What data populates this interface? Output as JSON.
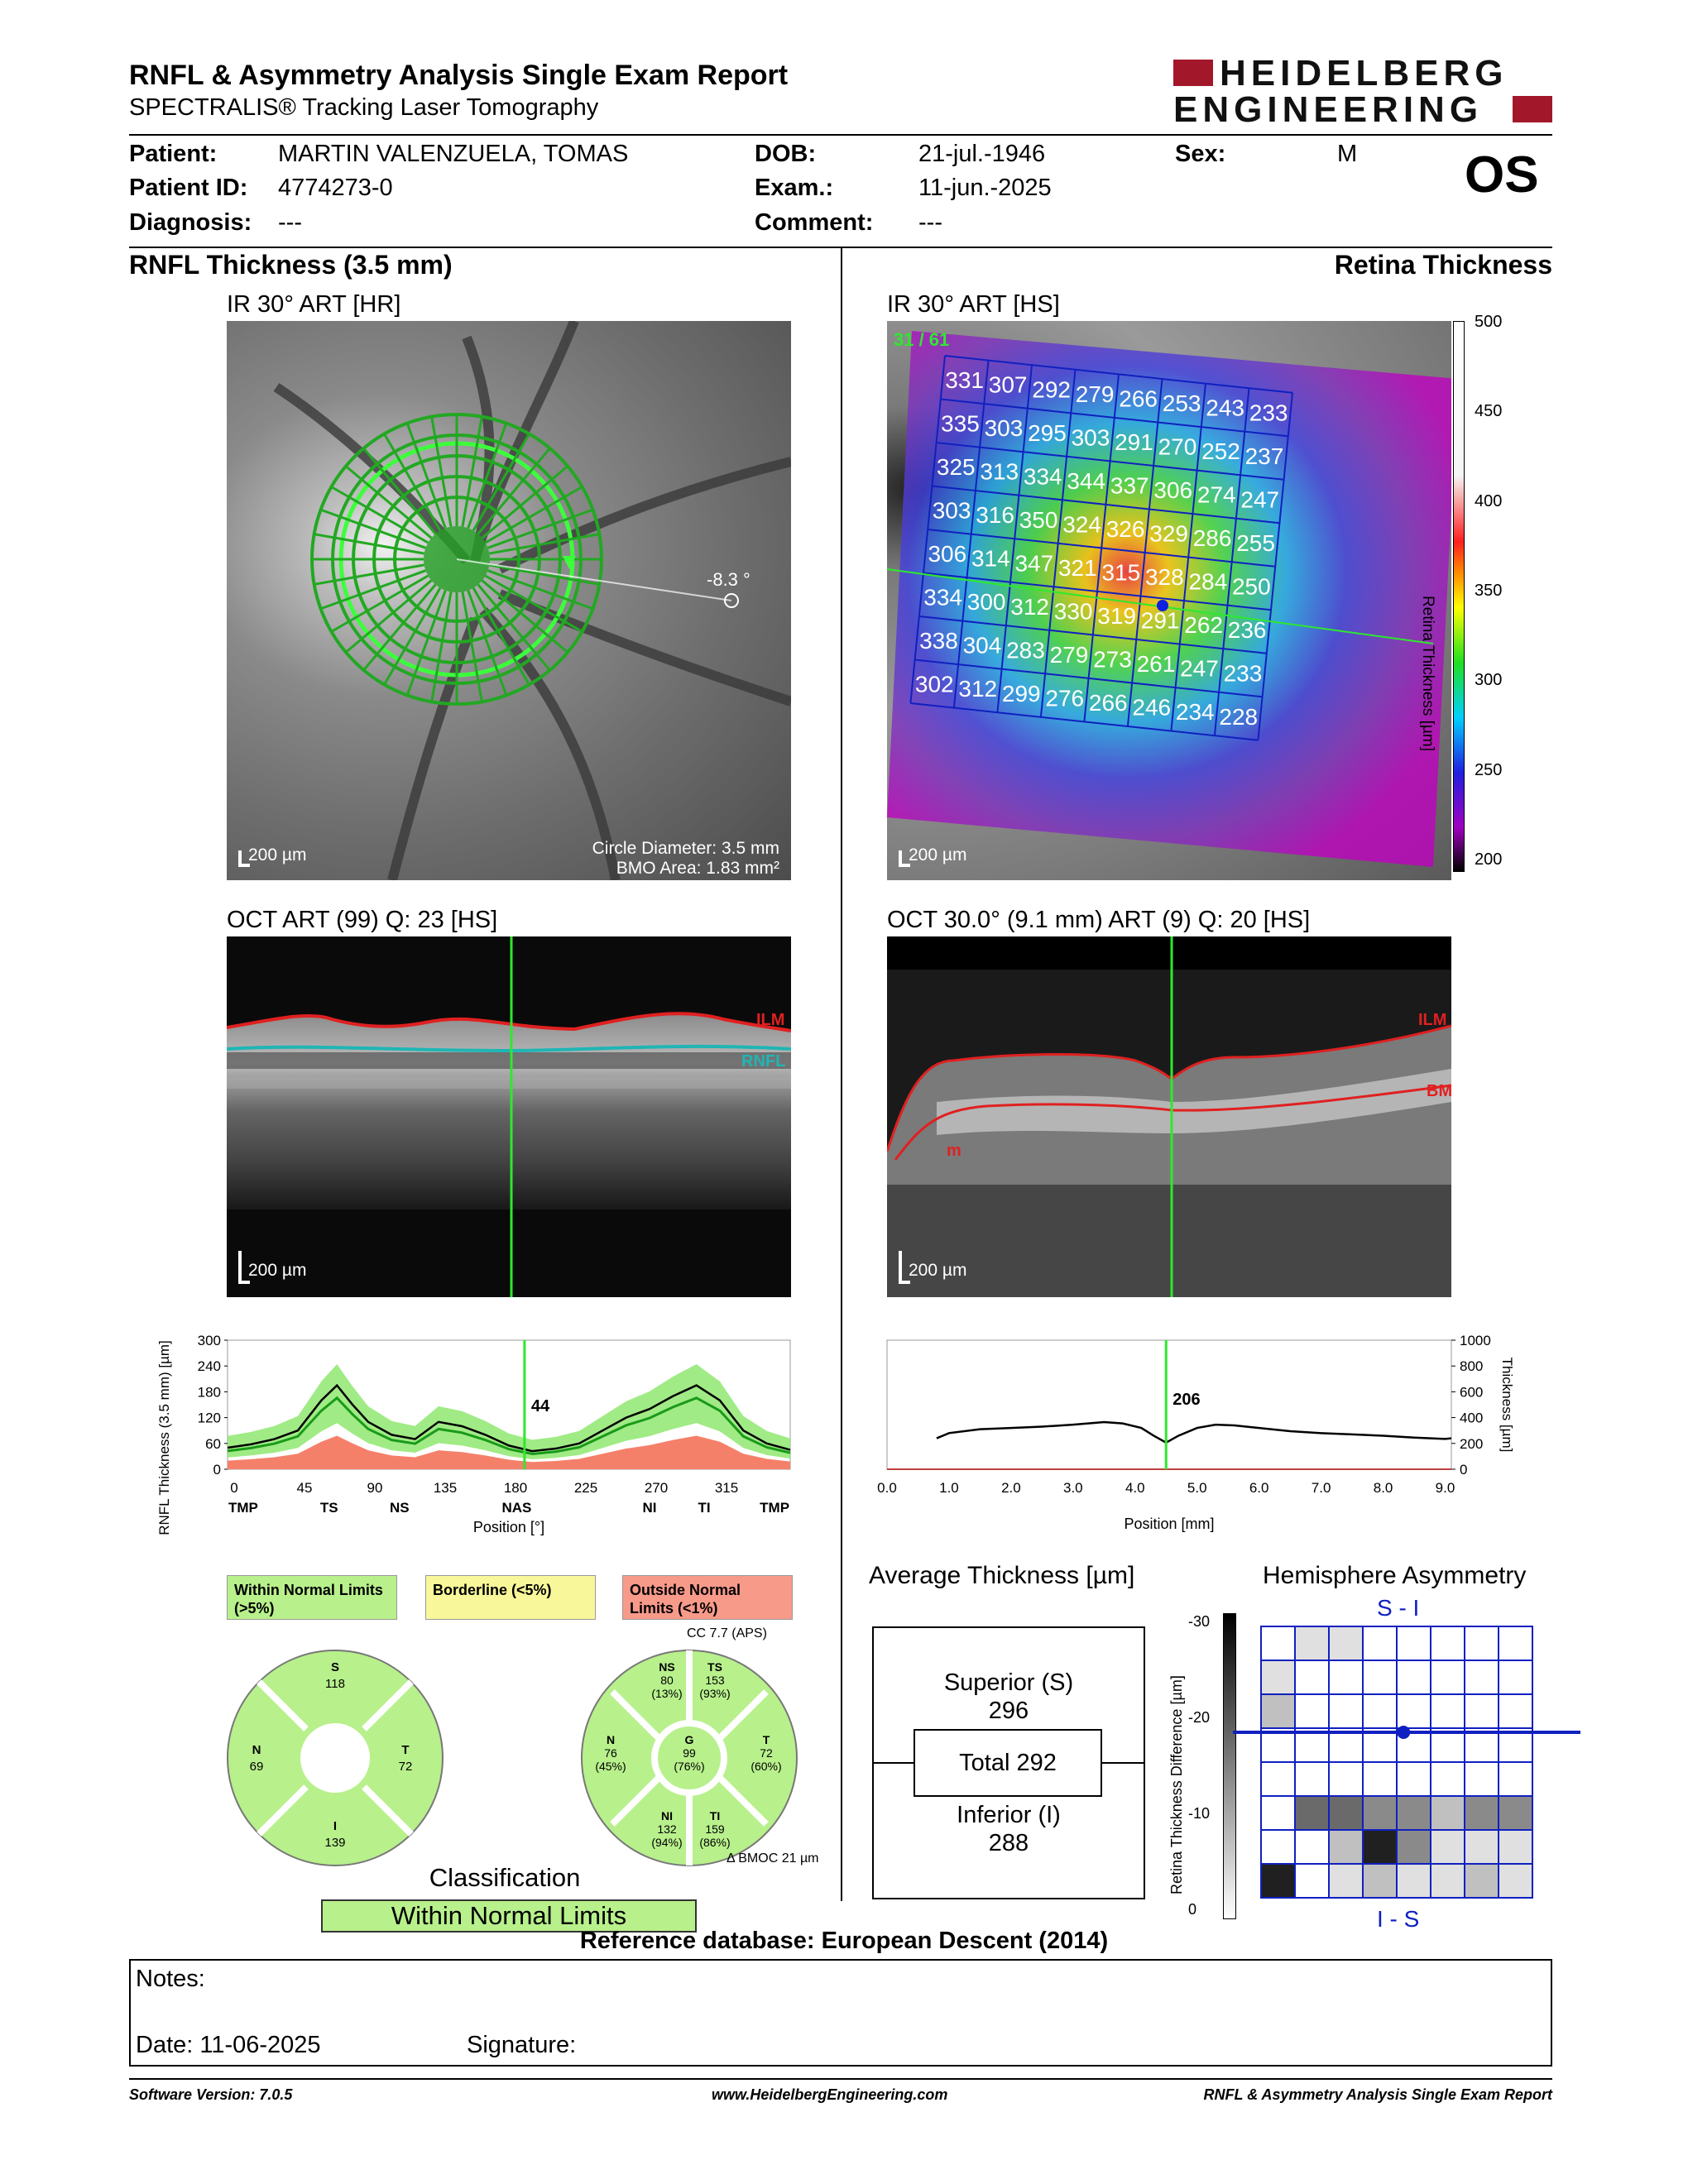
{
  "header": {
    "title": "RNFL & Asymmetry Analysis Single Exam Report",
    "subtitle": "SPECTRALIS® Tracking Laser Tomography",
    "logo_line1": "HEIDELBERG",
    "logo_line2": "ENGINEERING",
    "eye": "OS"
  },
  "patient": {
    "patient_label": "Patient:",
    "patient_value": "MARTIN VALENZUELA, TOMAS",
    "id_label": "Patient ID:",
    "id_value": "4774273-0",
    "diag_label": "Diagnosis:",
    "diag_value": "---",
    "dob_label": "DOB:",
    "dob_value": "21-jul.-1946",
    "exam_label": "Exam.:",
    "exam_value": "11-jun.-2025",
    "comment_label": "Comment:",
    "comment_value": "---",
    "sex_label": "Sex:",
    "sex_value": "M"
  },
  "left": {
    "section_title": "RNFL Thickness (3.5 mm)",
    "ir_label": "IR 30° ART [HR]",
    "ir_angle": "-8.3 °",
    "ir_scale": "200 µm",
    "circle_diameter": "Circle Diameter: 3.5 mm",
    "bmo_area": "BMO Area: 1.83 mm²",
    "oct_label": "OCT ART (99) Q: 23 [HS]",
    "oct_scale": "200 µm",
    "oct_ilm": "ILM",
    "oct_rnfl": "RNFL"
  },
  "right": {
    "section_title": "Retina Thickness",
    "ir_label": "IR 30° ART [HS]",
    "ir_scale": "200 µm",
    "frame": "31 / 61",
    "grid": [
      [
        331,
        307,
        292,
        279,
        266,
        253,
        243,
        233
      ],
      [
        335,
        303,
        295,
        303,
        291,
        270,
        252,
        237
      ],
      [
        325,
        313,
        334,
        344,
        337,
        306,
        274,
        247
      ],
      [
        303,
        316,
        350,
        324,
        326,
        329,
        286,
        255
      ],
      [
        306,
        314,
        347,
        321,
        315,
        328,
        284,
        250
      ],
      [
        334,
        300,
        312,
        330,
        319,
        291,
        262,
        236
      ],
      [
        338,
        304,
        283,
        279,
        273,
        261,
        247,
        233
      ],
      [
        302,
        312,
        299,
        276,
        266,
        246,
        234,
        228
      ]
    ],
    "colorbar_title": "Retina Thickness [µm]",
    "colorbar_ticks": [
      "500",
      "450",
      "400",
      "350",
      "300",
      "250",
      "200"
    ],
    "oct_label": "OCT 30.0° (9.1 mm) ART (9) Q: 20 [HS]",
    "oct_scale": "200 µm",
    "oct_ilm": "ILM",
    "oct_bm": "BM",
    "oct_m": "m"
  },
  "chart_data": [
    {
      "type": "line",
      "ylabel": "RNFL Thickness (3.5 mm) [µm]",
      "xlabel": "Position [°]",
      "ylim": [
        0,
        300
      ],
      "xlim": [
        0,
        360
      ],
      "yticks": [
        "300",
        "240",
        "180",
        "120",
        "60",
        "0"
      ],
      "xticks": [
        "0",
        "45",
        "90",
        "135",
        "180",
        "225",
        "270",
        "315"
      ],
      "sector_labels": [
        "TMP",
        "TS",
        "NS",
        "NAS",
        "NI",
        "TI",
        "TMP"
      ],
      "cursor_x": 190,
      "cursor_value": "44",
      "x": [
        0,
        15,
        30,
        45,
        60,
        70,
        80,
        90,
        105,
        120,
        135,
        150,
        165,
        180,
        195,
        210,
        225,
        240,
        255,
        270,
        285,
        300,
        315,
        330,
        345,
        360
      ],
      "values": [
        50,
        58,
        70,
        90,
        160,
        195,
        150,
        110,
        80,
        70,
        110,
        100,
        80,
        55,
        42,
        48,
        60,
        90,
        120,
        140,
        170,
        195,
        160,
        90,
        60,
        45
      ]
    },
    {
      "type": "line",
      "ylabel": "Thickness [µm]",
      "xlabel": "Position [mm]",
      "ylim": [
        0,
        1000
      ],
      "xlim": [
        0,
        9.1
      ],
      "yticks": [
        "1000",
        "800",
        "600",
        "400",
        "200",
        "0"
      ],
      "xticks": [
        "0.0",
        "1.0",
        "2.0",
        "3.0",
        "4.0",
        "5.0",
        "6.0",
        "7.0",
        "8.0",
        "9.0"
      ],
      "cursor_x": 4.5,
      "cursor_value": "206",
      "x": [
        0.8,
        1.0,
        1.5,
        2.0,
        2.5,
        3.0,
        3.5,
        3.8,
        4.1,
        4.3,
        4.5,
        4.7,
        5.0,
        5.3,
        5.6,
        6.0,
        6.5,
        7.0,
        7.5,
        8.0,
        8.5,
        9.0,
        9.1
      ],
      "values": [
        240,
        280,
        310,
        320,
        330,
        345,
        365,
        355,
        320,
        260,
        206,
        260,
        320,
        345,
        340,
        320,
        295,
        280,
        270,
        260,
        245,
        235,
        240
      ]
    }
  ],
  "legend": {
    "within": "Within Normal Limits (>5%)",
    "borderline": "Borderline (<5%)",
    "outside": "Outside Normal Limits (<1%)"
  },
  "sectors_quadrant": {
    "S_label": "S",
    "S_value": "118",
    "N_label": "N",
    "N_value": "69",
    "T_label": "T",
    "T_value": "72",
    "I_label": "I",
    "I_value": "139"
  },
  "sectors_six": {
    "cc": "CC 7.7 (APS)",
    "NS_label": "NS",
    "NS_value": "80",
    "NS_pct": "(13%)",
    "TS_label": "TS",
    "TS_value": "153",
    "TS_pct": "(93%)",
    "N_label": "N",
    "N_value": "76",
    "N_pct": "(45%)",
    "G_label": "G",
    "G_value": "99",
    "G_pct": "(76%)",
    "T_label": "T",
    "T_value": "72",
    "T_pct": "(60%)",
    "NI_label": "NI",
    "NI_value": "132",
    "NI_pct": "(94%)",
    "TI_label": "TI",
    "TI_value": "159",
    "TI_pct": "(86%)",
    "bmoc": "Δ BMOC 21 µm"
  },
  "classification": {
    "title": "Classification",
    "value": "Within Normal Limits"
  },
  "average": {
    "title": "Average Thickness [µm]",
    "superior_label": "Superior (S)",
    "superior_value": "296",
    "total_label": "Total 292",
    "inferior_label": "Inferior (I)",
    "inferior_value": "288"
  },
  "asymmetry": {
    "title": "Hemisphere Asymmetry",
    "top_label": "S - I",
    "bottom_label": "I - S",
    "axis_label": "Retina Thickness Difference [µm]",
    "ticks": [
      "-30",
      "-20",
      "-10",
      "0"
    ],
    "cells_top": [
      [
        0,
        1,
        1,
        0,
        0,
        0,
        0,
        0
      ],
      [
        1,
        0,
        0,
        0,
        0,
        0,
        0,
        0
      ],
      [
        2,
        0,
        0,
        0,
        0,
        0,
        0,
        0
      ],
      [
        0,
        0,
        0,
        0,
        0,
        0,
        0,
        0
      ]
    ],
    "cells_bottom": [
      [
        0,
        0,
        0,
        0,
        0,
        0,
        0,
        0
      ],
      [
        0,
        4,
        4,
        3,
        3,
        2,
        3,
        3
      ],
      [
        0,
        0,
        2,
        5,
        3,
        1,
        1,
        1
      ],
      [
        5,
        0,
        1,
        2,
        1,
        1,
        2,
        1
      ]
    ]
  },
  "reference": "Reference database: European Descent (2014)",
  "notes": {
    "notes_label": "Notes:",
    "date_label": "Date: 11-06-2025",
    "signature_label": "Signature:"
  },
  "footer": {
    "left": "Software Version: 7.0.5",
    "center": "www.HeidelbergEngineering.com",
    "right": "RNFL & Asymmetry Analysis Single Exam Report"
  }
}
